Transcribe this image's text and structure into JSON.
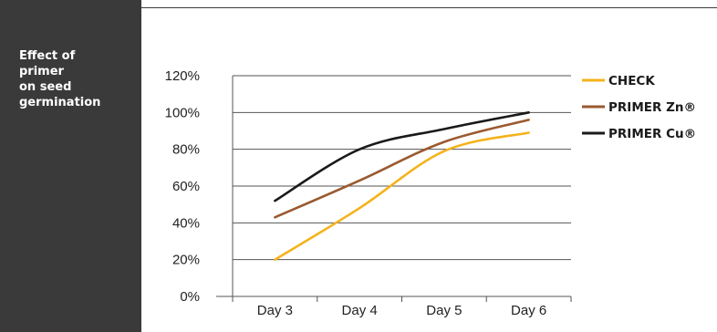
{
  "sidebar": {
    "title": "Effect of\nprimer\non seed\ngermination"
  },
  "chart_data": {
    "type": "line",
    "categories": [
      "Day 3",
      "Day 4",
      "Day 5",
      "Day 6"
    ],
    "ylim": [
      0,
      120
    ],
    "yticks": [
      "0%",
      "20%",
      "40%",
      "60%",
      "80%",
      "100%",
      "120%"
    ],
    "grid": true,
    "legend_position": "right",
    "series": [
      {
        "name": "CHECK",
        "color": "#f4b31c",
        "values": [
          20,
          48,
          79,
          89
        ]
      },
      {
        "name": "PRIMER Zn®",
        "color": "#9a5a30",
        "values": [
          43,
          63,
          84,
          96
        ]
      },
      {
        "name": "PRIMER Cu®",
        "color": "#1a1a1a",
        "values": [
          52,
          80,
          91,
          100
        ]
      }
    ]
  }
}
